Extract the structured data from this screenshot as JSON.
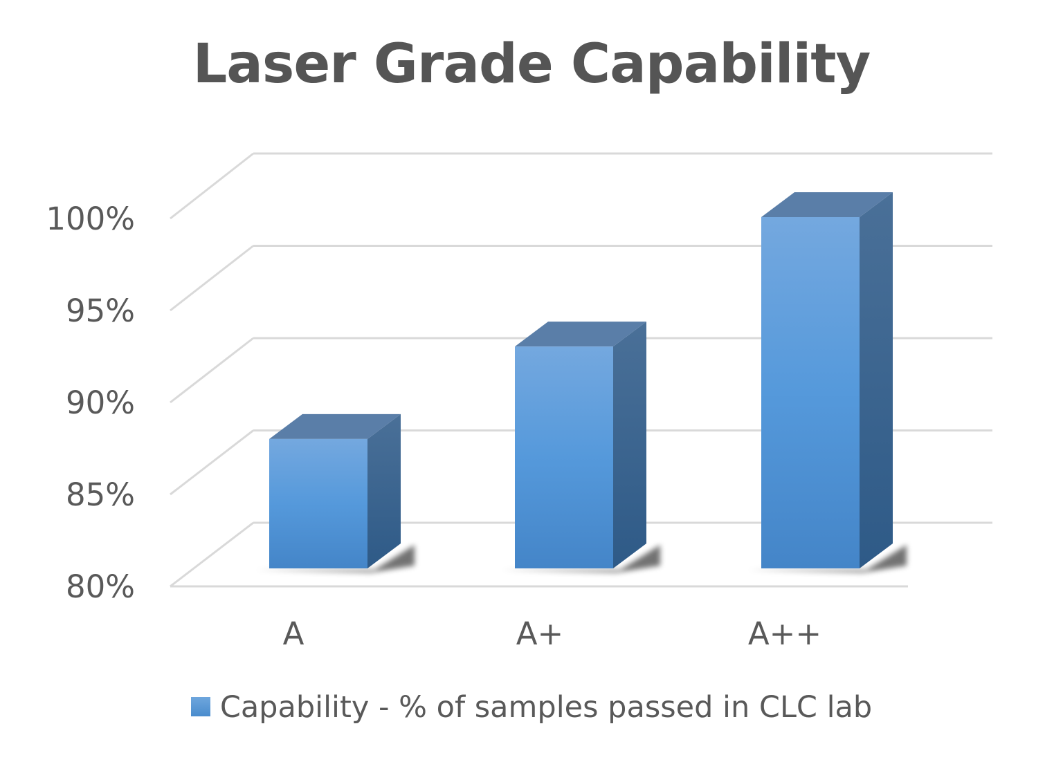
{
  "chart_data": {
    "type": "bar",
    "title": "Laser Grade Capability",
    "categories": [
      "A",
      "A+",
      "A++"
    ],
    "series": [
      {
        "name": "Capability - % of samples passed in CLC lab",
        "values": [
          87,
          92,
          99
        ]
      }
    ],
    "ylim": [
      80,
      100
    ],
    "yticks": [
      "80%",
      "85%",
      "90%",
      "95%",
      "100%"
    ],
    "grid": true,
    "legend": "bottom",
    "three_d": true,
    "colors": {
      "bar": "#5b9bd5",
      "bar_side": "#3d6a9a",
      "bar_top": "#5a7ea8",
      "grid": "#d9d9d9",
      "text": "#595959"
    }
  }
}
